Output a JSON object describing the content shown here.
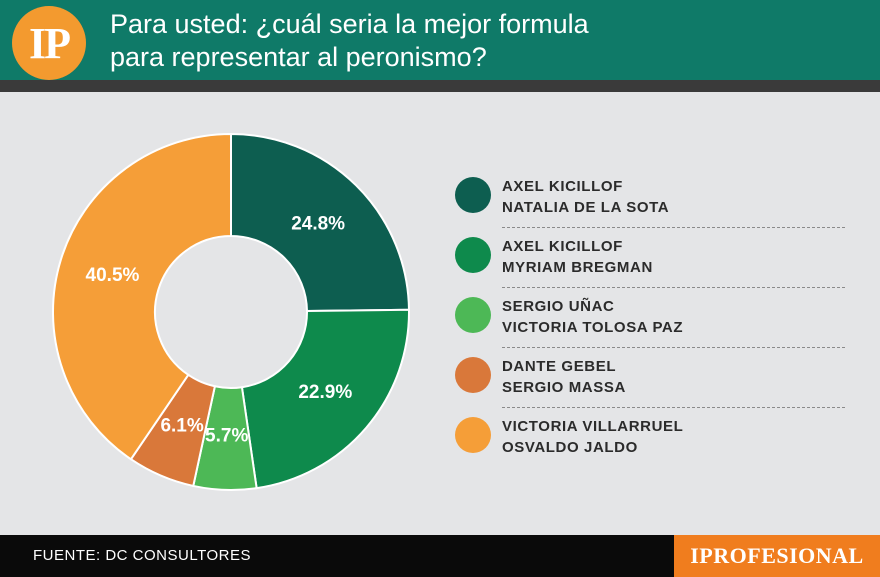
{
  "header": {
    "logo_text": "IP",
    "title_line1": "Para usted: ¿cuál seria la mejor formula",
    "title_line2": "para representar al peronismo?"
  },
  "chart_data": {
    "type": "pie",
    "donut": true,
    "title": "Para usted: ¿cuál seria la mejor formula para representar al peronismo?",
    "legend_position": "right",
    "slices": [
      {
        "name_line1": "AXEL KICILLOF",
        "name_line2": "NATALIA DE LA SOTA",
        "value": 24.8,
        "label": "24.8%",
        "color": "#0d5e50"
      },
      {
        "name_line1": "AXEL KICILLOF",
        "name_line2": "MYRIAM BREGMAN",
        "value": 22.9,
        "label": "22.9%",
        "color": "#0e8a4c"
      },
      {
        "name_line1": "SERGIO UÑAC",
        "name_line2": "VICTORIA TOLOSA PAZ",
        "value": 5.7,
        "label": "5.7%",
        "color": "#4db856"
      },
      {
        "name_line1": "DANTE GEBEL",
        "name_line2": "SERGIO MASSA",
        "value": 6.1,
        "label": "6.1%",
        "color": "#d9783a"
      },
      {
        "name_line1": "VICTORIA VILLARRUEL",
        "name_line2": "OSVALDO JALDO",
        "value": 40.5,
        "label": "40.5%",
        "color": "#f59e38"
      }
    ]
  },
  "footer": {
    "source": "FUENTE: DC CONSULTORES",
    "brand": "IPROFESIONAL"
  }
}
